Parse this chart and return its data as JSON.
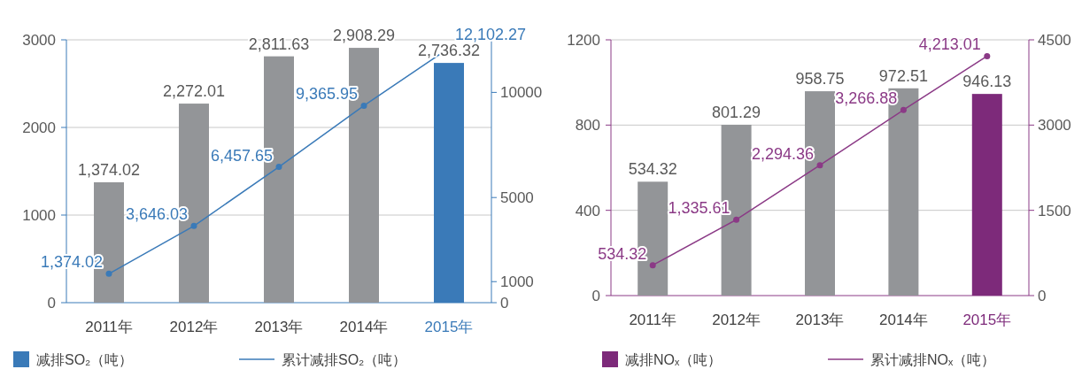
{
  "chart_data": [
    {
      "type": "bar",
      "categories": [
        "2011年",
        "2012年",
        "2013年",
        "2014年",
        "2015年"
      ],
      "series": [
        {
          "name": "减排SO₂（吨）",
          "color": "#3a7ab8",
          "colors": [
            "#939598",
            "#939598",
            "#939598",
            "#939598",
            "#3a7ab8"
          ],
          "values": [
            1374.02,
            2272.01,
            2811.63,
            2908.29,
            2736.32
          ],
          "value_labels": [
            "1,374.02",
            "2,272.01",
            "2,811.63",
            "2,908.29",
            "2,736.32"
          ]
        },
        {
          "name": "累计减排SO₂（吨）",
          "type": "line",
          "axis": "y2",
          "color": "#3a7ab8",
          "values": [
            1374.02,
            3646.03,
            6457.65,
            9365.95,
            12102.27
          ],
          "value_labels": [
            "1,374.02",
            "3,646.03",
            "6,457.65",
            "9,365.95",
            "12,102.27"
          ]
        }
      ],
      "ylim": [
        0,
        3000
      ],
      "yticks": [
        0,
        1000,
        2000,
        3000
      ],
      "y2lim": [
        0,
        12500
      ],
      "y2ticks": [
        0,
        1000,
        5000,
        10000
      ],
      "grid": "y",
      "legend": "bottom",
      "data_labels": true,
      "marker": "circle"
    },
    {
      "type": "bar",
      "categories": [
        "2011年",
        "2012年",
        "2013年",
        "2014年",
        "2015年"
      ],
      "series": [
        {
          "name": "减排NOₓ（吨）",
          "color": "#7d2a7a",
          "colors": [
            "#939598",
            "#939598",
            "#939598",
            "#939598",
            "#7d2a7a"
          ],
          "values": [
            534.32,
            801.29,
            958.75,
            972.51,
            946.13
          ]
        },
        {
          "name": "累计减排NOₓ（吨）",
          "type": "line",
          "axis": "y2",
          "color": "#8b3a86",
          "values": [
            534.32,
            1335.61,
            2294.36,
            3266.88,
            4213.01
          ],
          "value_labels": [
            "534.32",
            "1,335.61",
            "2,294.36",
            "3,266.88",
            "4,213.01"
          ]
        }
      ],
      "ylim": [
        0,
        1200
      ],
      "yticks": [
        0,
        400,
        800,
        1200
      ],
      "y2lim": [
        0,
        4500
      ],
      "y2ticks": [
        0,
        1500,
        3000,
        4500
      ],
      "grid": "y",
      "legend": "bottom",
      "data_labels": true,
      "marker": "circle"
    }
  ]
}
